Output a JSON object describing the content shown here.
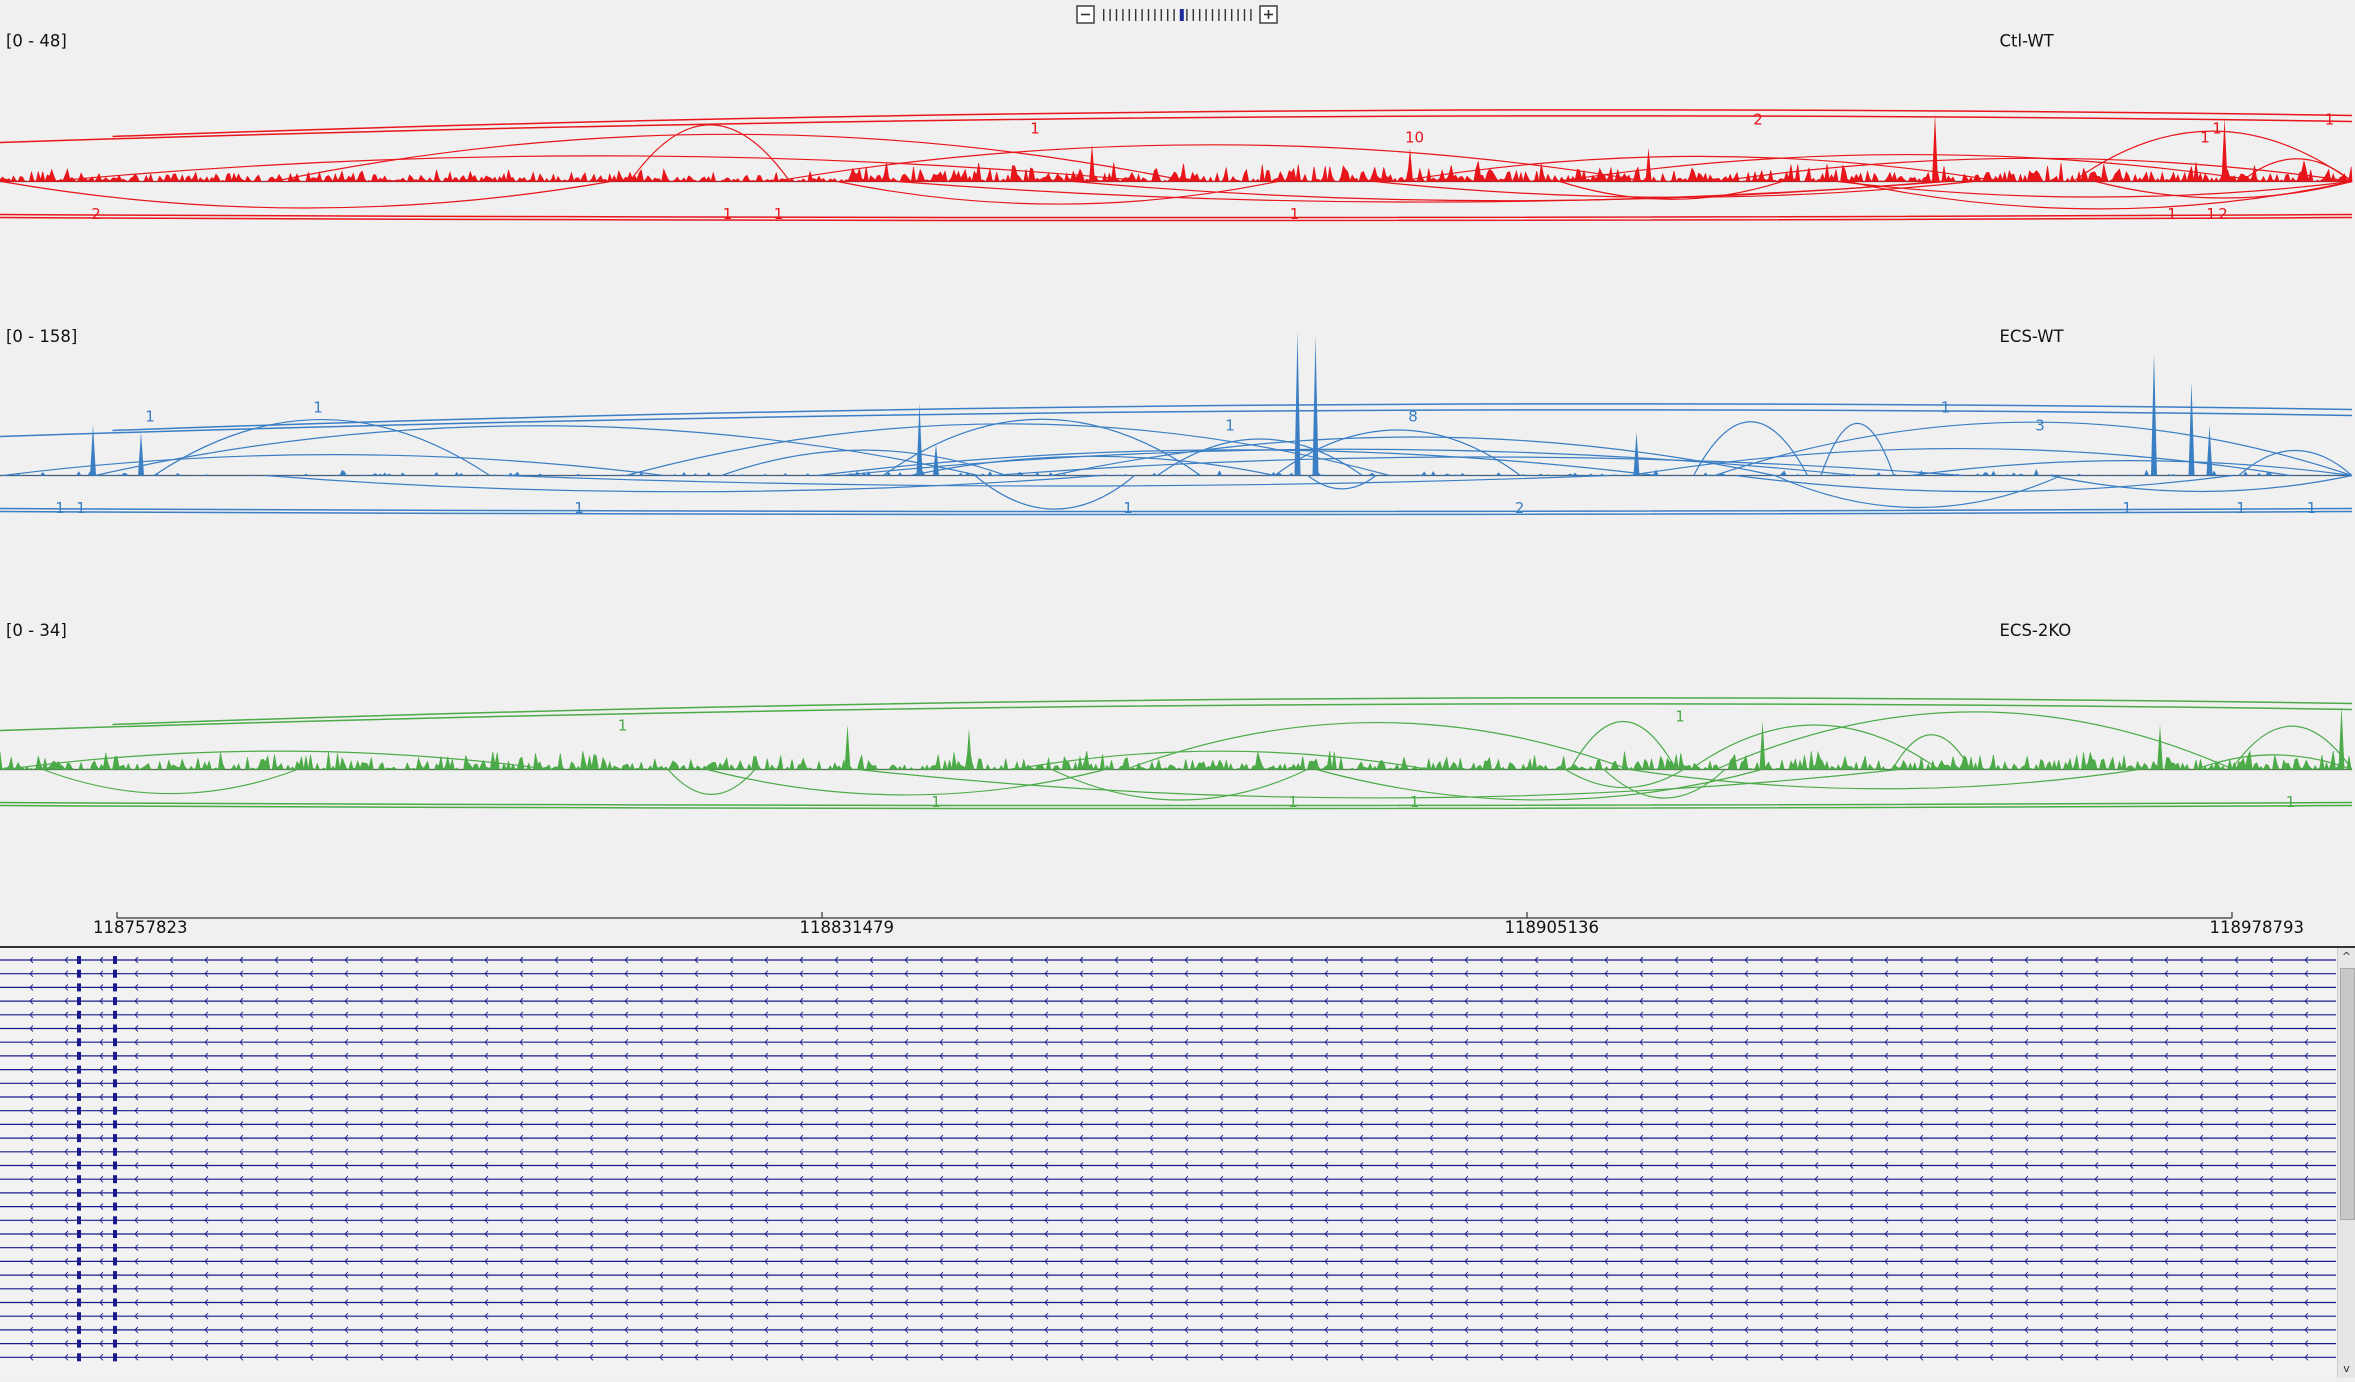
{
  "zoom": {
    "minus_icon": "minus-icon",
    "plus_icon": "plus-icon",
    "ticks": 24,
    "active_tick": 12
  },
  "tracks": [
    {
      "range_label": "[0 - 48]",
      "name": "Ctl-WT",
      "color": "#e8151b",
      "seed": 11,
      "density": 0.9,
      "spikes": [
        [
          1290,
          0.9
        ],
        [
          1483,
          0.85
        ],
        [
          728,
          0.5
        ],
        [
          1099,
          0.45
        ],
        [
          940,
          0.45
        ]
      ],
      "junction_labels_above": [
        {
          "x": 943,
          "text": "10"
        },
        {
          "x": 690,
          "text": "1"
        },
        {
          "x": 1172,
          "text": "2"
        },
        {
          "x": 1470,
          "text": "1"
        },
        {
          "x": 1478,
          "text": "1"
        },
        {
          "x": 1553,
          "text": "1"
        }
      ],
      "junction_labels_below": [
        {
          "x": 64,
          "text": "2"
        },
        {
          "x": 485,
          "text": "1"
        },
        {
          "x": 519,
          "text": "1"
        },
        {
          "x": 863,
          "text": "1"
        },
        {
          "x": 1448,
          "text": "1"
        },
        {
          "x": 1474,
          "text": "1"
        },
        {
          "x": 1482,
          "text": "2"
        }
      ]
    },
    {
      "range_label": "[0 - 158]",
      "name": "ECS-WT",
      "color": "#3a7ec4",
      "seed": 23,
      "density": 0.25,
      "spikes": [
        [
          865,
          1.0
        ],
        [
          877,
          0.97
        ],
        [
          1436,
          0.85
        ],
        [
          1461,
          0.65
        ],
        [
          613,
          0.5
        ],
        [
          62,
          0.35
        ],
        [
          1091,
          0.3
        ],
        [
          624,
          0.22
        ],
        [
          94,
          0.3
        ],
        [
          1473,
          0.35
        ]
      ],
      "junction_labels_above": [
        {
          "x": 1360,
          "text": "3"
        },
        {
          "x": 100,
          "text": "1"
        },
        {
          "x": 212,
          "text": "1"
        },
        {
          "x": 820,
          "text": "1"
        },
        {
          "x": 942,
          "text": "8"
        },
        {
          "x": 1297,
          "text": "1"
        }
      ],
      "junction_labels_below": [
        {
          "x": 40,
          "text": "1"
        },
        {
          "x": 54,
          "text": "1"
        },
        {
          "x": 386,
          "text": "1"
        },
        {
          "x": 752,
          "text": "1"
        },
        {
          "x": 1013,
          "text": "2"
        },
        {
          "x": 1418,
          "text": "1"
        },
        {
          "x": 1494,
          "text": "1"
        },
        {
          "x": 1541,
          "text": "1"
        }
      ]
    },
    {
      "range_label": "[0 - 34]",
      "name": "ECS-2KO",
      "color": "#4cab48",
      "seed": 37,
      "density": 0.75,
      "spikes": [
        [
          1561,
          0.85
        ],
        [
          1175,
          0.65
        ],
        [
          565,
          0.6
        ],
        [
          646,
          0.55
        ],
        [
          1440,
          0.6
        ]
      ],
      "junction_labels_above": [
        {
          "x": 415,
          "text": "1"
        },
        {
          "x": 1120,
          "text": "1"
        }
      ],
      "junction_labels_below": [
        {
          "x": 624,
          "text": "1"
        },
        {
          "x": 862,
          "text": "1"
        },
        {
          "x": 943,
          "text": "1"
        },
        {
          "x": 1527,
          "text": "1"
        }
      ]
    }
  ],
  "ruler": {
    "ticks": [
      "118757823",
      "118831479",
      "118905136",
      "118978793"
    ]
  },
  "gene_panel": {
    "transcript_count": 30,
    "color": "#1a1a8c"
  },
  "colors": {
    "background": "#f0f0f0",
    "axis": "#333333"
  }
}
